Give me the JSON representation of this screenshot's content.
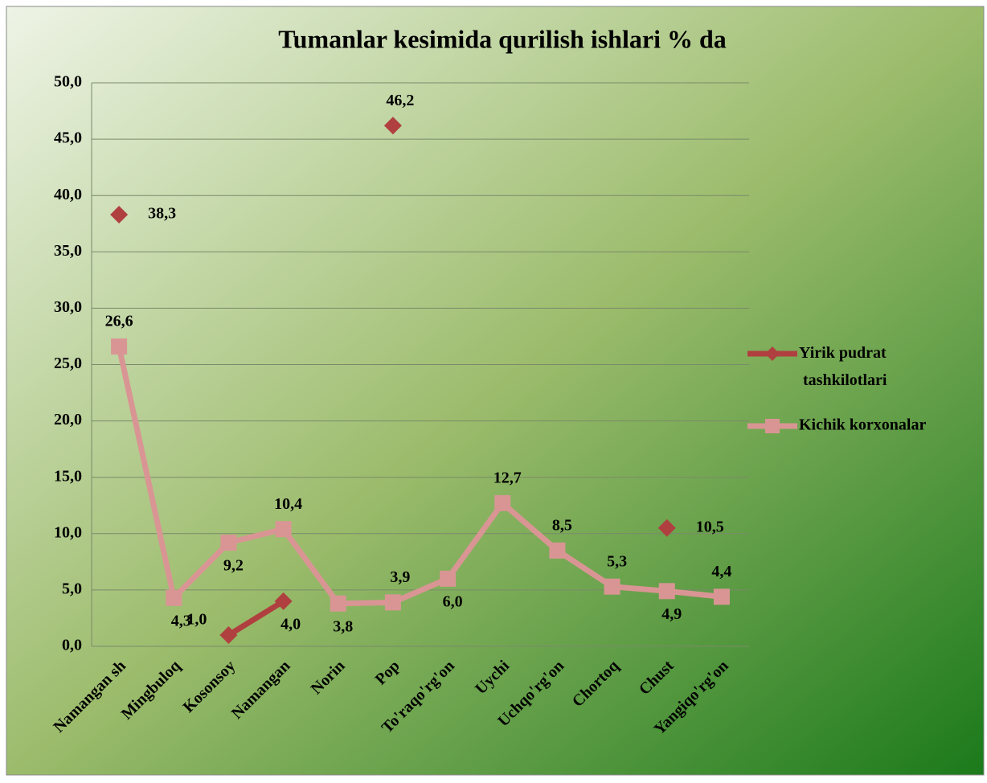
{
  "chart_data": {
    "type": "line",
    "title": "Tumanlar kesimida qurilish ishlari   % da",
    "categories": [
      "Namangan sh",
      "Mingbuloq",
      "Kosonsoy",
      "Namangan",
      "Norin",
      "Pop",
      "To'raqo'rg'on",
      "Uychi",
      "Uchqo'rg'on",
      "Chortoq",
      "Chust",
      "Yangiqo'rg'on"
    ],
    "series": [
      {
        "name": "Yirik pudrat tashkilotlari",
        "color": "#b04040",
        "marker": "diamond",
        "values": [
          38.3,
          null,
          1.0,
          4.0,
          null,
          46.2,
          null,
          null,
          null,
          null,
          10.5,
          null
        ],
        "value_labels": [
          "38,3",
          null,
          "1,0",
          "4,0",
          null,
          "46,2",
          null,
          null,
          null,
          null,
          "10,5",
          null
        ]
      },
      {
        "name": "Kichik korxonalar",
        "color": "#d99594",
        "marker": "square",
        "values": [
          26.6,
          4.3,
          9.2,
          10.4,
          3.8,
          3.9,
          6.0,
          12.7,
          8.5,
          5.3,
          4.9,
          4.4
        ],
        "value_labels": [
          "26,6",
          "4,3",
          "9,2",
          "10,4",
          "3,8",
          "3,9",
          "6,0",
          "12,7",
          "8,5",
          "5,3",
          "4,9",
          "4,4"
        ]
      }
    ],
    "ylim": [
      0,
      50
    ],
    "yticks": [
      {
        "value": 0,
        "label": "0,0"
      },
      {
        "value": 5,
        "label": "5,0"
      },
      {
        "value": 10,
        "label": "10,0"
      },
      {
        "value": 15,
        "label": "15,0"
      },
      {
        "value": 20,
        "label": "20,0"
      },
      {
        "value": 25,
        "label": "25,0"
      },
      {
        "value": 30,
        "label": "30,0"
      },
      {
        "value": 35,
        "label": "35,0"
      },
      {
        "value": 40,
        "label": "40,0"
      },
      {
        "value": 45,
        "label": "45,0"
      },
      {
        "value": 50,
        "label": "50,0"
      }
    ],
    "grid": true,
    "legend": "right"
  }
}
